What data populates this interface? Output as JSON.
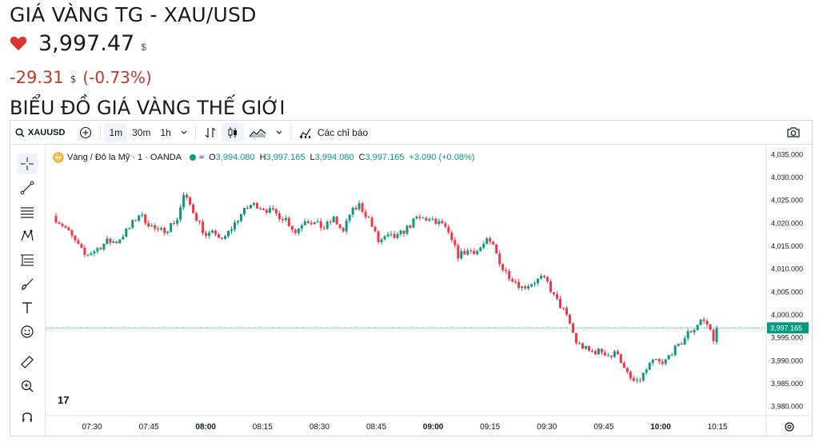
{
  "header": {
    "title": "GIÁ VÀNG TG - XAU/USD",
    "price": "3,997.47",
    "price_unit": "$",
    "change": "-29.31",
    "change_unit": "$",
    "change_pct": "(-0.73%)",
    "section_title": "BIỂU ĐỒ GIÁ VÀNG THẾ GIỚI"
  },
  "colors": {
    "up": "#089981",
    "down": "#f23645",
    "change": "#c0392b",
    "heart": "#e03131"
  },
  "toolbar": {
    "symbol": "XAUUSD",
    "intervals": [
      "1m",
      "30m",
      "1h"
    ],
    "indicators_label": "Các chỉ báo"
  },
  "sidebar_icons": [
    "crosshair-icon",
    "trend-line-icon",
    "horizontal-lines-icon",
    "pattern-icon",
    "fib-icon",
    "brush-icon",
    "text-icon",
    "emoji-icon",
    "ruler-icon",
    "zoom-icon",
    "magnet-icon"
  ],
  "legend": {
    "name": "Vàng / Đô la Mỹ · 1 · OANDA",
    "o_label": "O",
    "o": "3,994.080",
    "h_label": "H",
    "h": "3,997.165",
    "l_label": "L",
    "l": "3,994.080",
    "c_label": "C",
    "c": "3,997.165",
    "change": "+3.090 (+0.08%)"
  },
  "chart_data": {
    "type": "candlestick",
    "symbol": "XAUUSD",
    "interval": "1",
    "y_ticks": [
      4035,
      4030,
      4025,
      4020,
      4015,
      4010,
      4005,
      4000,
      3995,
      3990,
      3985,
      3980
    ],
    "y_tick_labels": [
      "4,035.000",
      "4,030.000",
      "4,025.000",
      "4,020.000",
      "4,015.000",
      "4,010.000",
      "4,005.000",
      "4,000.000",
      "3,995.000",
      "3,990.000",
      "3,985.000",
      "3,980.000"
    ],
    "x_tick_labels": [
      "07:30",
      "07:45",
      "08:00",
      "08:15",
      "08:30",
      "08:45",
      "09:00",
      "09:15",
      "09:30",
      "09:45",
      "10:00",
      "10:15"
    ],
    "last_price": 3997.165,
    "last_price_label": "3,997.165",
    "close_path": [
      [
        0,
        4021
      ],
      [
        3,
        4019
      ],
      [
        6,
        4016
      ],
      [
        9,
        4013
      ],
      [
        12,
        4014
      ],
      [
        16,
        4016
      ],
      [
        19,
        4016
      ],
      [
        23,
        4019
      ],
      [
        26,
        4022
      ],
      [
        29,
        4020
      ],
      [
        32,
        4018
      ],
      [
        35,
        4019
      ],
      [
        38,
        4021
      ],
      [
        40,
        4026
      ],
      [
        42,
        4024
      ],
      [
        45,
        4020
      ],
      [
        47,
        4017
      ],
      [
        50,
        4018
      ],
      [
        52,
        4016
      ],
      [
        55,
        4019
      ],
      [
        58,
        4022
      ],
      [
        61,
        4024
      ],
      [
        63,
        4024
      ],
      [
        66,
        4023
      ],
      [
        69,
        4022
      ],
      [
        72,
        4021
      ],
      [
        75,
        4018
      ],
      [
        78,
        4021
      ],
      [
        81,
        4020
      ],
      [
        84,
        4019
      ],
      [
        87,
        4021
      ],
      [
        90,
        4018
      ],
      [
        92,
        4022
      ],
      [
        95,
        4024
      ],
      [
        98,
        4021
      ],
      [
        101,
        4016
      ],
      [
        104,
        4017
      ],
      [
        107,
        4017
      ],
      [
        110,
        4019
      ],
      [
        113,
        4021
      ],
      [
        116,
        4021
      ],
      [
        119,
        4020
      ],
      [
        121,
        4020
      ],
      [
        124,
        4016
      ],
      [
        126,
        4013
      ],
      [
        129,
        4014
      ],
      [
        132,
        4014
      ],
      [
        135,
        4016
      ],
      [
        137,
        4015
      ],
      [
        140,
        4010
      ],
      [
        143,
        4008
      ],
      [
        146,
        4006
      ],
      [
        149,
        4007
      ],
      [
        152,
        4008
      ],
      [
        154,
        4007
      ],
      [
        156,
        4004
      ],
      [
        159,
        4001
      ],
      [
        161,
        3998
      ],
      [
        163,
        3994
      ],
      [
        165,
        3993
      ],
      [
        167,
        3992
      ],
      [
        171,
        3992
      ],
      [
        174,
        3991
      ],
      [
        176,
        3992
      ],
      [
        178,
        3988
      ],
      [
        180,
        3986
      ],
      [
        182,
        3985
      ],
      [
        184,
        3987
      ],
      [
        186,
        3989
      ],
      [
        188,
        3990
      ],
      [
        190,
        3989
      ],
      [
        193,
        3992
      ],
      [
        195,
        3993
      ],
      [
        198,
        3996
      ],
      [
        200,
        3997
      ],
      [
        202,
        3999
      ],
      [
        204,
        3998
      ],
      [
        206,
        3995
      ],
      [
        207,
        3997.165
      ]
    ],
    "y_range": [
      3978,
      4037
    ],
    "x_range": [
      0,
      212
    ],
    "grid": false
  }
}
